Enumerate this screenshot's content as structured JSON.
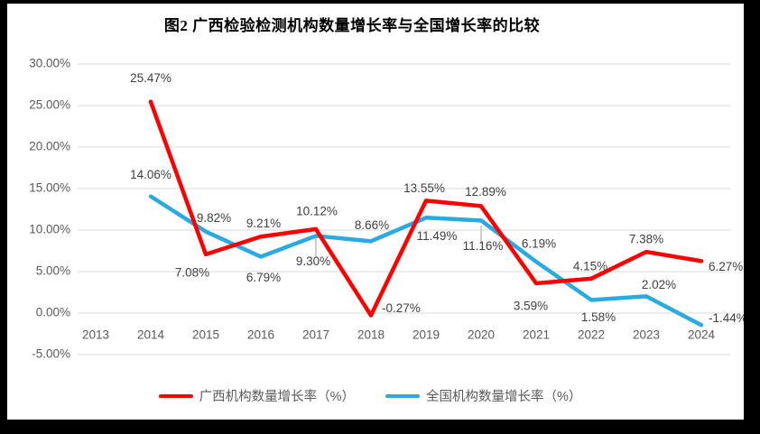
{
  "figure": {
    "title": "图2 广西检验检测机构数量增长率与全国增长率的比较"
  },
  "chart_data": {
    "type": "line",
    "title": "图2 广西检验检测机构数量增长率与全国增长率的比较",
    "categories": [
      "2013",
      "2014",
      "2015",
      "2016",
      "2017",
      "2018",
      "2019",
      "2020",
      "2021",
      "2022",
      "2023",
      "2024"
    ],
    "series": [
      {
        "name": "广西机构数量增长率（%）",
        "color": "#FF0000",
        "values": [
          null,
          25.47,
          7.08,
          9.21,
          10.12,
          -0.27,
          13.55,
          12.89,
          3.59,
          4.15,
          7.38,
          6.27
        ],
        "labels": [
          "",
          "25.47%",
          "7.08%",
          "9.21%",
          "10.12%",
          "-0.27%",
          "13.55%",
          "12.89%",
          "3.59%",
          "4.15%",
          "7.38%",
          "6.27%"
        ]
      },
      {
        "name": "全国机构数量增长率（%）",
        "color": "#29ABE2",
        "values": [
          null,
          14.06,
          9.82,
          6.79,
          9.3,
          8.66,
          11.49,
          11.16,
          6.19,
          1.58,
          2.02,
          -1.44
        ],
        "labels": [
          "",
          "14.06%",
          "9.82%",
          "6.79%",
          "9.30%",
          "8.66%",
          "11.49%",
          "11.16%",
          "6.19%",
          "1.58%",
          "2.02%",
          "-1.44%"
        ]
      }
    ],
    "y_axis": {
      "tick_labels": [
        "30.00%",
        "25.00%",
        "20.00%",
        "15.00%",
        "10.00%",
        "5.00%",
        "0.00%",
        "-5.00%"
      ],
      "max": 30,
      "min": -5,
      "step": 5
    },
    "grid": true,
    "legend_position": "bottom",
    "colors": {
      "grid": "#D9D9D9",
      "axis_text": "#595959",
      "label_text": "#3F3F3F",
      "frame": "#000000",
      "background": "#FFFFFF"
    }
  }
}
